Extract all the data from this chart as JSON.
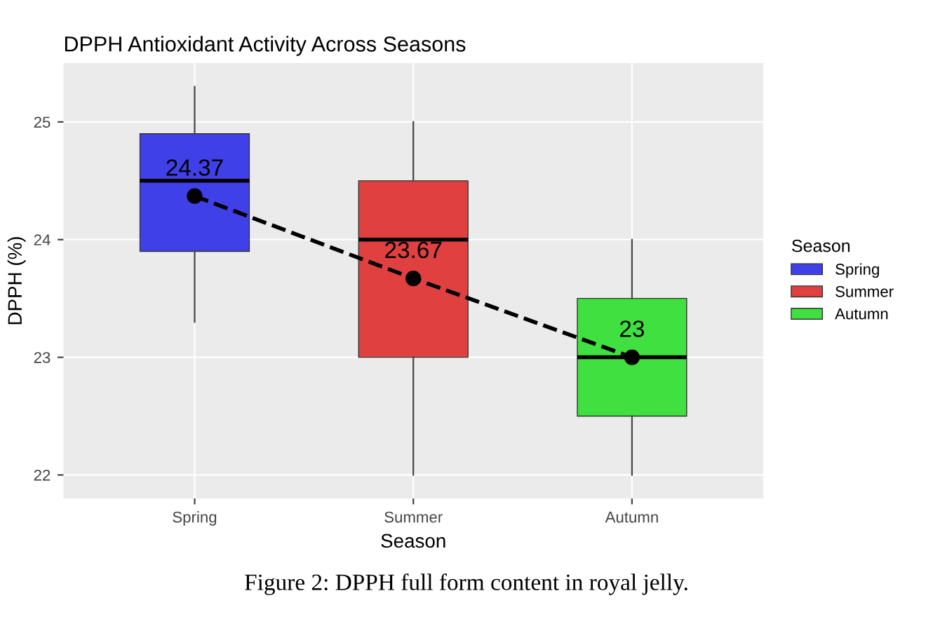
{
  "chart_data": {
    "type": "box",
    "title": "DPPH Antioxidant Activity Across Seasons",
    "xlabel": "Season",
    "ylabel": "DPPH (%)",
    "legend_title": "Season",
    "categories": [
      "Spring",
      "Summer",
      "Autumn"
    ],
    "ylim": [
      21.8,
      25.5
    ],
    "yticks": [
      22,
      23,
      24,
      25
    ],
    "grid": true,
    "legend": "right",
    "series": [
      {
        "name": "Spring",
        "color": "#4040e8",
        "boxes": [
          {
            "low": 23.3,
            "q1": 23.9,
            "median": 24.5,
            "q3": 24.9,
            "high": 25.3
          },
          null,
          null
        ]
      },
      {
        "name": "Summer",
        "color": "#e04040",
        "boxes": [
          null,
          {
            "low": 22.0,
            "q1": 23.0,
            "median": 24.0,
            "q3": 24.5,
            "high": 25.0
          },
          null
        ]
      },
      {
        "name": "Autumn",
        "color": "#40e040",
        "boxes": [
          null,
          null,
          {
            "low": 22.0,
            "q1": 22.5,
            "median": 23.0,
            "q3": 23.5,
            "high": 24.0
          }
        ]
      },
      {
        "type": "line",
        "color": "#000000",
        "values": [
          24.37,
          23.67,
          23
        ],
        "marker": "circle",
        "line_style": "dashed"
      }
    ],
    "annotations": [
      {
        "text": "24.37",
        "x": "Spring",
        "y": 24.37
      },
      {
        "text": "23.67",
        "x": "Summer",
        "y": 23.67
      },
      {
        "text": "23",
        "x": "Autumn",
        "y": 23
      },
      "Figure 2: DPPH full form content in royal jelly."
    ]
  }
}
